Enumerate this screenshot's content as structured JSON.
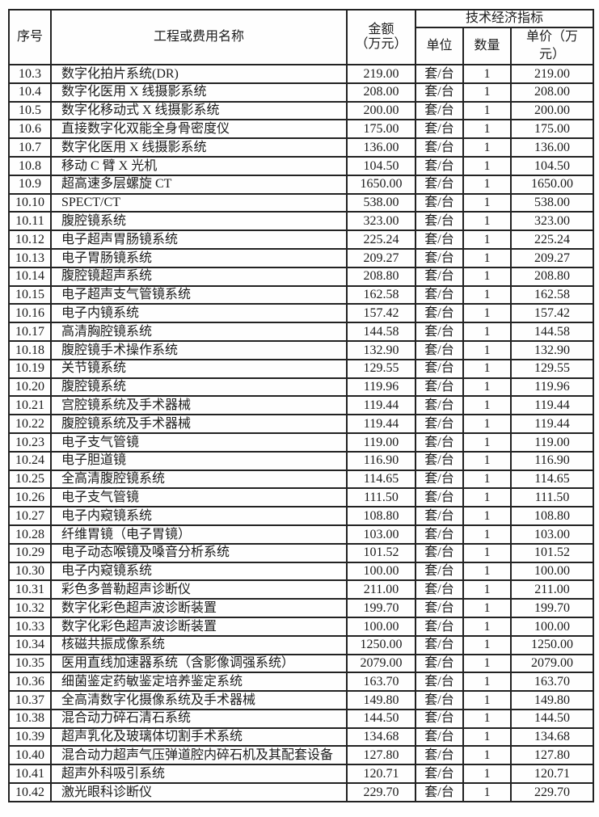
{
  "colors": {
    "border": "#222222",
    "text": "#1b1b1b",
    "background": "#fefefe"
  },
  "table": {
    "headers": {
      "seq": "序号",
      "name": "工程或费用名称",
      "amount": "金额\n（万元）",
      "tech_group": "技术经济指标",
      "unit": "单位",
      "qty": "数量",
      "unit_price": "单价（万\n元）"
    },
    "rows": [
      {
        "seq": "10.3",
        "name": "数字化拍片系统(DR)",
        "amount": "219.00",
        "unit": "套/台",
        "qty": "1",
        "price": "219.00"
      },
      {
        "seq": "10.4",
        "name": "数字化医用 X 线摄影系统",
        "amount": "208.00",
        "unit": "套/台",
        "qty": "1",
        "price": "208.00"
      },
      {
        "seq": "10.5",
        "name": "数字化移动式 X 线摄影系统",
        "amount": "200.00",
        "unit": "套/台",
        "qty": "1",
        "price": "200.00"
      },
      {
        "seq": "10.6",
        "name": "直接数字化双能全身骨密度仪",
        "amount": "175.00",
        "unit": "套/台",
        "qty": "1",
        "price": "175.00"
      },
      {
        "seq": "10.7",
        "name": "数字化医用 X 线摄影系统",
        "amount": "136.00",
        "unit": "套/台",
        "qty": "1",
        "price": "136.00"
      },
      {
        "seq": "10.8",
        "name": "移动 C 臂 X 光机",
        "amount": "104.50",
        "unit": "套/台",
        "qty": "1",
        "price": "104.50"
      },
      {
        "seq": "10.9",
        "name": "超高速多层螺旋 CT",
        "amount": "1650.00",
        "unit": "套/台",
        "qty": "1",
        "price": "1650.00"
      },
      {
        "seq": "10.10",
        "name": "SPECT/CT",
        "amount": "538.00",
        "unit": "套/台",
        "qty": "1",
        "price": "538.00"
      },
      {
        "seq": "10.11",
        "name": "腹腔镜系统",
        "amount": "323.00",
        "unit": "套/台",
        "qty": "1",
        "price": "323.00"
      },
      {
        "seq": "10.12",
        "name": "电子超声胃肠镜系统",
        "amount": "225.24",
        "unit": "套/台",
        "qty": "1",
        "price": "225.24"
      },
      {
        "seq": "10.13",
        "name": "电子胃肠镜系统",
        "amount": "209.27",
        "unit": "套/台",
        "qty": "1",
        "price": "209.27"
      },
      {
        "seq": "10.14",
        "name": "腹腔镜超声系统",
        "amount": "208.80",
        "unit": "套/台",
        "qty": "1",
        "price": "208.80"
      },
      {
        "seq": "10.15",
        "name": "电子超声支气管镜系统",
        "amount": "162.58",
        "unit": "套/台",
        "qty": "1",
        "price": "162.58"
      },
      {
        "seq": "10.16",
        "name": "电子内镜系统",
        "amount": "157.42",
        "unit": "套/台",
        "qty": "1",
        "price": "157.42"
      },
      {
        "seq": "10.17",
        "name": "高清胸腔镜系统",
        "amount": "144.58",
        "unit": "套/台",
        "qty": "1",
        "price": "144.58"
      },
      {
        "seq": "10.18",
        "name": "腹腔镜手术操作系统",
        "amount": "132.90",
        "unit": "套/台",
        "qty": "1",
        "price": "132.90"
      },
      {
        "seq": "10.19",
        "name": "关节镜系统",
        "amount": "129.55",
        "unit": "套/台",
        "qty": "1",
        "price": "129.55"
      },
      {
        "seq": "10.20",
        "name": "腹腔镜系统",
        "amount": "119.96",
        "unit": "套/台",
        "qty": "1",
        "price": "119.96"
      },
      {
        "seq": "10.21",
        "name": "宫腔镜系统及手术器械",
        "amount": "119.44",
        "unit": "套/台",
        "qty": "1",
        "price": "119.44"
      },
      {
        "seq": "10.22",
        "name": "腹腔镜系统及手术器械",
        "amount": "119.44",
        "unit": "套/台",
        "qty": "1",
        "price": "119.44"
      },
      {
        "seq": "10.23",
        "name": "电子支气管镜",
        "amount": "119.00",
        "unit": "套/台",
        "qty": "1",
        "price": "119.00"
      },
      {
        "seq": "10.24",
        "name": "电子胆道镜",
        "amount": "116.90",
        "unit": "套/台",
        "qty": "1",
        "price": "116.90"
      },
      {
        "seq": "10.25",
        "name": "全高清腹腔镜系统",
        "amount": "114.65",
        "unit": "套/台",
        "qty": "1",
        "price": "114.65"
      },
      {
        "seq": "10.26",
        "name": "电子支气管镜",
        "amount": "111.50",
        "unit": "套/台",
        "qty": "1",
        "price": "111.50"
      },
      {
        "seq": "10.27",
        "name": "电子内窥镜系统",
        "amount": "108.80",
        "unit": "套/台",
        "qty": "1",
        "price": "108.80"
      },
      {
        "seq": "10.28",
        "name": "纤维胃镜（电子胃镜）",
        "amount": "103.00",
        "unit": "套/台",
        "qty": "1",
        "price": "103.00"
      },
      {
        "seq": "10.29",
        "name": "电子动态喉镜及嗓音分析系统",
        "amount": "101.52",
        "unit": "套/台",
        "qty": "1",
        "price": "101.52"
      },
      {
        "seq": "10.30",
        "name": "电子内窥镜系统",
        "amount": "100.00",
        "unit": "套/台",
        "qty": "1",
        "price": "100.00"
      },
      {
        "seq": "10.31",
        "name": "彩色多普勒超声诊断仪",
        "amount": "211.00",
        "unit": "套/台",
        "qty": "1",
        "price": "211.00"
      },
      {
        "seq": "10.32",
        "name": "数字化彩色超声波诊断装置",
        "amount": "199.70",
        "unit": "套/台",
        "qty": "1",
        "price": "199.70"
      },
      {
        "seq": "10.33",
        "name": "数字化彩色超声波诊断装置",
        "amount": "100.00",
        "unit": "套/台",
        "qty": "1",
        "price": "100.00"
      },
      {
        "seq": "10.34",
        "name": "核磁共振成像系统",
        "amount": "1250.00",
        "unit": "套/台",
        "qty": "1",
        "price": "1250.00"
      },
      {
        "seq": "10.35",
        "name": "医用直线加速器系统（含影像调强系统）",
        "amount": "2079.00",
        "unit": "套/台",
        "qty": "1",
        "price": "2079.00"
      },
      {
        "seq": "10.36",
        "name": "细菌鉴定药敏鉴定培养鉴定系统",
        "amount": "163.70",
        "unit": "套/台",
        "qty": "1",
        "price": "163.70"
      },
      {
        "seq": "10.37",
        "name": "全高清数字化摄像系统及手术器械",
        "amount": "149.80",
        "unit": "套/台",
        "qty": "1",
        "price": "149.80"
      },
      {
        "seq": "10.38",
        "name": "混合动力碎石清石系统",
        "amount": "144.50",
        "unit": "套/台",
        "qty": "1",
        "price": "144.50"
      },
      {
        "seq": "10.39",
        "name": "超声乳化及玻璃体切割手术系统",
        "amount": "134.68",
        "unit": "套/台",
        "qty": "1",
        "price": "134.68"
      },
      {
        "seq": "10.40",
        "name": "混合动力超声气压弹道腔内碎石机及其配套设备",
        "amount": "127.80",
        "unit": "套/台",
        "qty": "1",
        "price": "127.80"
      },
      {
        "seq": "10.41",
        "name": "超声外科吸引系统",
        "amount": "120.71",
        "unit": "套/台",
        "qty": "1",
        "price": "120.71"
      },
      {
        "seq": "10.42",
        "name": "激光眼科诊断仪",
        "amount": "229.70",
        "unit": "套/台",
        "qty": "1",
        "price": "229.70"
      }
    ]
  }
}
